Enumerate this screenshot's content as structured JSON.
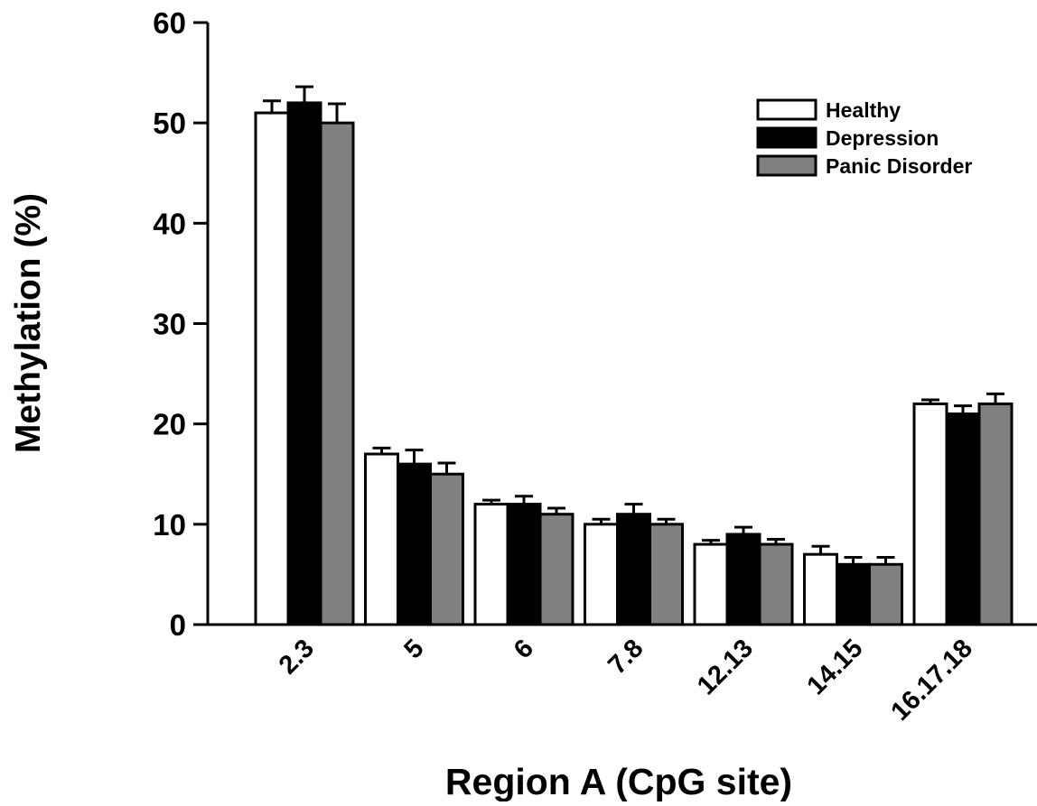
{
  "chart_data": {
    "type": "bar",
    "title": "",
    "xlabel": "Region A (CpG site)",
    "ylabel": "Methylation (%)",
    "ylim": [
      0,
      60
    ],
    "yticks": [
      "0",
      "10",
      "20",
      "30",
      "40",
      "50",
      "60"
    ],
    "categories": [
      "2.3",
      "5",
      "6",
      "7.8",
      "12.13",
      "14.15",
      "16.17.18"
    ],
    "series": [
      {
        "name": "Healthy",
        "color": "#ffffff",
        "values": [
          51,
          17,
          12,
          10,
          8,
          7,
          22
        ],
        "errors": [
          1.2,
          0.6,
          0.4,
          0.5,
          0.4,
          0.8,
          0.4
        ]
      },
      {
        "name": "Depression",
        "color": "#000000",
        "values": [
          52,
          16,
          12,
          11,
          9,
          6,
          21
        ],
        "errors": [
          1.6,
          1.4,
          0.8,
          1.0,
          0.7,
          0.7,
          0.8
        ]
      },
      {
        "name": "Panic Disorder",
        "color": "#808080",
        "values": [
          50,
          15,
          11,
          10,
          8,
          6,
          22
        ],
        "errors": [
          1.9,
          1.1,
          0.6,
          0.5,
          0.5,
          0.7,
          1.0
        ]
      }
    ],
    "legend_position": "top-right",
    "grid": false
  }
}
